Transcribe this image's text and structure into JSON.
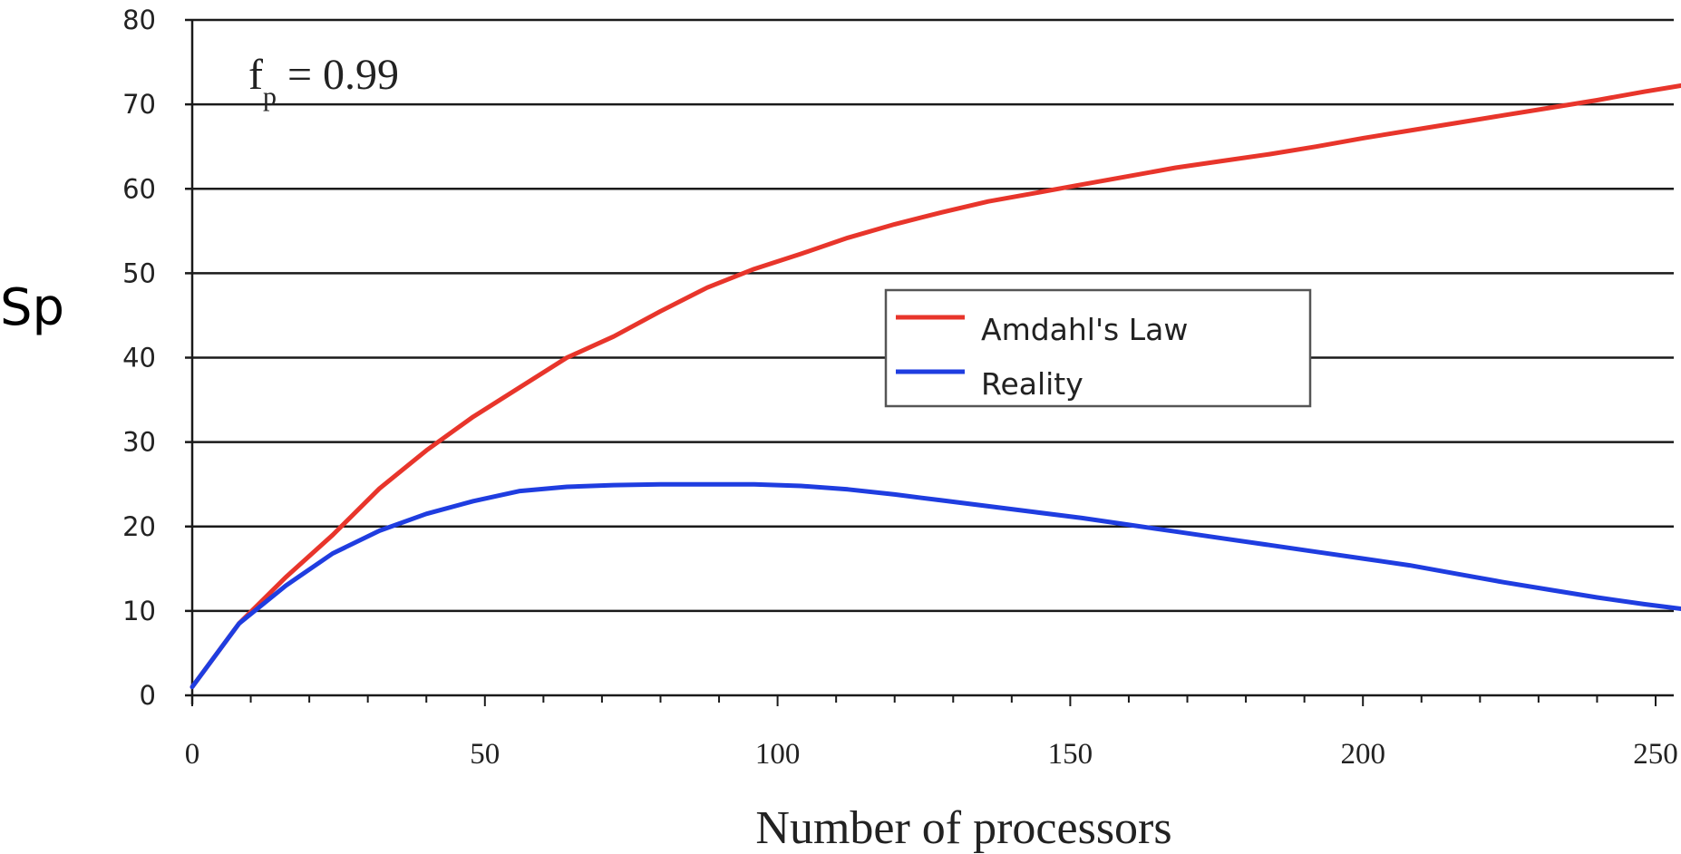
{
  "chart_data": {
    "type": "line",
    "xlabel": "Number of processors",
    "ylabel": "Sp",
    "xlim": [
      0,
      255
    ],
    "ylim": [
      0,
      80
    ],
    "x_ticks": [
      "0",
      "50",
      "100",
      "150",
      "200",
      "250"
    ],
    "y_ticks": [
      "0",
      "10",
      "20",
      "30",
      "40",
      "50",
      "60",
      "70",
      "80"
    ],
    "grid": "horizontal",
    "legend": "center-right",
    "annotation": {
      "main": "f",
      "sub": "p",
      "rest": " = 0.99"
    },
    "series": [
      {
        "name": "Amdahl's Law",
        "color": "#e8352b",
        "x": [
          0,
          8,
          16,
          24,
          32,
          40,
          48,
          56,
          64,
          72,
          80,
          88,
          96,
          104,
          112,
          120,
          128,
          136,
          144,
          152,
          160,
          168,
          176,
          184,
          192,
          200,
          208,
          216,
          224,
          232,
          240,
          248,
          255
        ],
        "y": [
          1,
          8.5,
          14,
          19,
          24.5,
          29,
          33,
          36.5,
          40,
          42.5,
          45.5,
          48.3,
          50.5,
          52.3,
          54.2,
          55.8,
          57.2,
          58.5,
          59.5,
          60.5,
          61.5,
          62.5,
          63.3,
          64.1,
          65,
          66,
          66.9,
          67.8,
          68.7,
          69.6,
          70.5,
          71.5,
          72.3
        ]
      },
      {
        "name": "Reality",
        "color": "#1f3de0",
        "x": [
          0,
          8,
          16,
          24,
          32,
          40,
          48,
          56,
          64,
          72,
          80,
          88,
          96,
          104,
          112,
          120,
          128,
          136,
          144,
          152,
          160,
          168,
          176,
          184,
          192,
          200,
          208,
          216,
          224,
          232,
          240,
          248,
          255
        ],
        "y": [
          1,
          8.5,
          13,
          16.8,
          19.5,
          21.5,
          23,
          24.2,
          24.7,
          24.9,
          25,
          25,
          25,
          24.8,
          24.4,
          23.8,
          23.1,
          22.4,
          21.7,
          21,
          20.2,
          19.4,
          18.6,
          17.8,
          17,
          16.2,
          15.4,
          14.4,
          13.4,
          12.5,
          11.6,
          10.8,
          10.2
        ]
      }
    ]
  }
}
